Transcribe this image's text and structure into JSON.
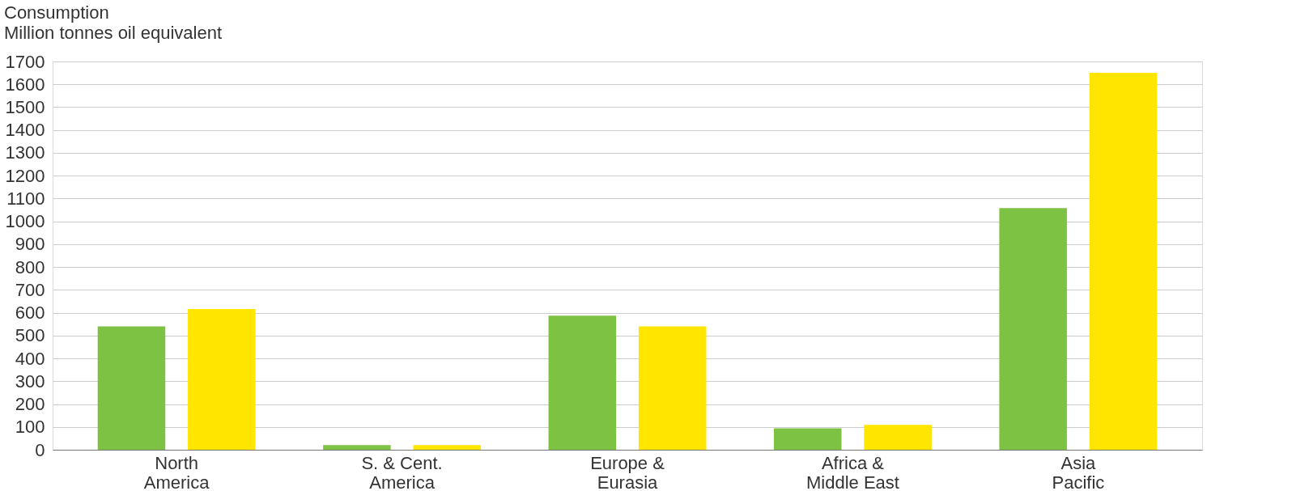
{
  "chart_data": {
    "type": "bar",
    "title": "Consumption",
    "ylabel": "Million tonnes oil equivalent",
    "categories": [
      "North America",
      "S. & Cent. America",
      "Europe & Eurasia",
      "Africa & Middle East",
      "Asia Pacific"
    ],
    "series": [
      {
        "color": "#7dc242",
        "values": [
          540,
          20,
          587,
          94,
          1058
        ]
      },
      {
        "color": "#ffe500",
        "values": [
          616,
          20,
          540,
          109,
          1650
        ]
      }
    ],
    "ylim": [
      0,
      1700
    ],
    "yticks": [
      0,
      100,
      200,
      300,
      400,
      500,
      600,
      700,
      800,
      900,
      1000,
      1100,
      1200,
      1300,
      1400,
      1500,
      1600,
      1700
    ],
    "grid": "y",
    "legend": false
  }
}
